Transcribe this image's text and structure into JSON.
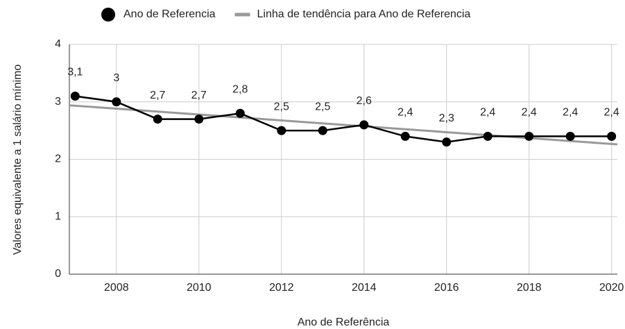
{
  "chart_data": {
    "type": "line",
    "x_label": "Ano de Referência",
    "y_label": "Valores equivalente a 1 salário mínimo",
    "x": [
      2007,
      2008,
      2009,
      2010,
      2011,
      2012,
      2013,
      2014,
      2015,
      2016,
      2017,
      2018,
      2019,
      2020
    ],
    "series": [
      {
        "name": "Ano de Referencia",
        "color": "#000000",
        "values": [
          3.1,
          3,
          2.7,
          2.7,
          2.8,
          2.5,
          2.5,
          2.6,
          2.4,
          2.3,
          2.4,
          2.4,
          2.4,
          2.4
        ],
        "value_labels": [
          "3,1",
          "3",
          "2,7",
          "2,7",
          "2,8",
          "2,5",
          "2,5",
          "2,6",
          "2,4",
          "2,3",
          "2,4",
          "2,4",
          "2,4",
          "2,4"
        ]
      },
      {
        "name": "Linha de tendência para Ano de Referencia",
        "color": "#999999",
        "trendline": true,
        "x": [
          2006.86,
          2020.14
        ],
        "values": [
          2.94,
          2.26
        ]
      }
    ],
    "xlim": [
      2006.86,
      2020.14
    ],
    "xticks": [
      2008,
      2010,
      2012,
      2014,
      2016,
      2018,
      2020
    ],
    "ylim": [
      0,
      4
    ],
    "yticks": [
      0,
      1,
      2,
      3,
      4
    ],
    "grid": true,
    "legend": "top"
  }
}
